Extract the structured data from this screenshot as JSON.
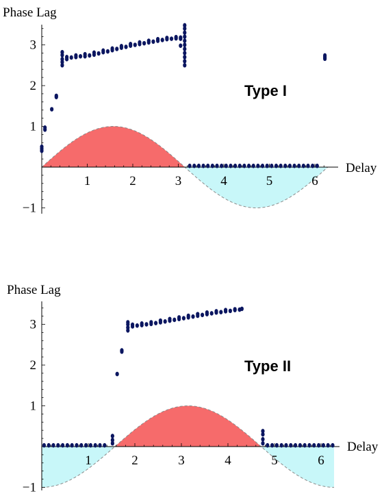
{
  "chart_data": [
    {
      "type": "scatter",
      "panel_label": "Type I",
      "ylabel": "Phase Lag",
      "xlabel": "Delay",
      "xlim": [
        0,
        6.28
      ],
      "ylim": [
        -1,
        3.5
      ],
      "xticks": [
        "1",
        "2",
        "3",
        "4",
        "5",
        "6"
      ],
      "xtick_values": [
        1,
        2,
        3,
        4,
        5,
        6
      ],
      "yticks": [
        "−1",
        "1",
        "2",
        "3"
      ],
      "ytick_values": [
        -1,
        1,
        2,
        3
      ],
      "background_curve": {
        "function": "sin(x)",
        "positive_color": "#f66b6b",
        "negative_color": "#c8f7f9"
      },
      "points": [
        {
          "x": 0.0,
          "y": 0.4
        },
        {
          "x": 0.0,
          "y": 0.45
        },
        {
          "x": 0.0,
          "y": 0.5
        },
        {
          "x": 0.07,
          "y": 0.92
        },
        {
          "x": 0.07,
          "y": 0.97
        },
        {
          "x": 0.22,
          "y": 1.42
        },
        {
          "x": 0.32,
          "y": 1.75
        },
        {
          "x": 0.32,
          "y": 1.72
        },
        {
          "x": 0.45,
          "y": 2.5
        },
        {
          "x": 0.45,
          "y": 2.58
        },
        {
          "x": 0.45,
          "y": 2.65
        },
        {
          "x": 0.45,
          "y": 2.75
        },
        {
          "x": 0.45,
          "y": 2.82
        },
        {
          "x": 0.55,
          "y": 2.65
        },
        {
          "x": 0.55,
          "y": 2.7
        },
        {
          "x": 0.65,
          "y": 2.69
        },
        {
          "x": 0.75,
          "y": 2.7
        },
        {
          "x": 0.75,
          "y": 2.74
        },
        {
          "x": 0.85,
          "y": 2.72
        },
        {
          "x": 0.95,
          "y": 2.72
        },
        {
          "x": 0.95,
          "y": 2.77
        },
        {
          "x": 1.05,
          "y": 2.74
        },
        {
          "x": 1.15,
          "y": 2.76
        },
        {
          "x": 1.15,
          "y": 2.81
        },
        {
          "x": 1.25,
          "y": 2.79
        },
        {
          "x": 1.35,
          "y": 2.82
        },
        {
          "x": 1.35,
          "y": 2.86
        },
        {
          "x": 1.45,
          "y": 2.84
        },
        {
          "x": 1.55,
          "y": 2.87
        },
        {
          "x": 1.55,
          "y": 2.91
        },
        {
          "x": 1.65,
          "y": 2.9
        },
        {
          "x": 1.75,
          "y": 2.93
        },
        {
          "x": 1.75,
          "y": 2.97
        },
        {
          "x": 1.85,
          "y": 2.95
        },
        {
          "x": 1.95,
          "y": 2.98
        },
        {
          "x": 1.95,
          "y": 3.02
        },
        {
          "x": 2.05,
          "y": 3.0
        },
        {
          "x": 2.15,
          "y": 3.02
        },
        {
          "x": 2.15,
          "y": 3.06
        },
        {
          "x": 2.25,
          "y": 3.04
        },
        {
          "x": 2.35,
          "y": 3.06
        },
        {
          "x": 2.35,
          "y": 3.1
        },
        {
          "x": 2.45,
          "y": 3.08
        },
        {
          "x": 2.55,
          "y": 3.1
        },
        {
          "x": 2.55,
          "y": 3.14
        },
        {
          "x": 2.65,
          "y": 3.12
        },
        {
          "x": 2.75,
          "y": 3.14
        },
        {
          "x": 2.75,
          "y": 3.17
        },
        {
          "x": 2.85,
          "y": 3.15
        },
        {
          "x": 2.95,
          "y": 3.16
        },
        {
          "x": 2.95,
          "y": 3.19
        },
        {
          "x": 3.05,
          "y": 3.18
        },
        {
          "x": 3.05,
          "y": 3.15
        },
        {
          "x": 3.05,
          "y": 2.98
        },
        {
          "x": 3.14,
          "y": 2.5
        },
        {
          "x": 3.14,
          "y": 2.6
        },
        {
          "x": 3.14,
          "y": 2.7
        },
        {
          "x": 3.14,
          "y": 2.8
        },
        {
          "x": 3.14,
          "y": 2.9
        },
        {
          "x": 3.14,
          "y": 3.0
        },
        {
          "x": 3.14,
          "y": 3.1
        },
        {
          "x": 3.14,
          "y": 3.2
        },
        {
          "x": 3.14,
          "y": 3.3
        },
        {
          "x": 3.14,
          "y": 3.4
        },
        {
          "x": 3.14,
          "y": 3.48
        },
        {
          "x": 3.25,
          "y": 0.03
        },
        {
          "x": 3.35,
          "y": 0.03
        },
        {
          "x": 3.45,
          "y": 0.03
        },
        {
          "x": 3.55,
          "y": 0.03
        },
        {
          "x": 3.65,
          "y": 0.03
        },
        {
          "x": 3.75,
          "y": 0.03
        },
        {
          "x": 3.85,
          "y": 0.03
        },
        {
          "x": 3.95,
          "y": 0.03
        },
        {
          "x": 4.05,
          "y": 0.03
        },
        {
          "x": 4.15,
          "y": 0.03
        },
        {
          "x": 4.25,
          "y": 0.03
        },
        {
          "x": 4.35,
          "y": 0.03
        },
        {
          "x": 4.45,
          "y": 0.03
        },
        {
          "x": 4.55,
          "y": 0.03
        },
        {
          "x": 4.65,
          "y": 0.03
        },
        {
          "x": 4.75,
          "y": 0.03
        },
        {
          "x": 4.85,
          "y": 0.03
        },
        {
          "x": 4.95,
          "y": 0.03
        },
        {
          "x": 5.05,
          "y": 0.03
        },
        {
          "x": 5.15,
          "y": 0.03
        },
        {
          "x": 5.25,
          "y": 0.03
        },
        {
          "x": 5.35,
          "y": 0.03
        },
        {
          "x": 5.45,
          "y": 0.03
        },
        {
          "x": 5.55,
          "y": 0.03
        },
        {
          "x": 5.65,
          "y": 0.03
        },
        {
          "x": 5.75,
          "y": 0.03
        },
        {
          "x": 5.85,
          "y": 0.03
        },
        {
          "x": 5.95,
          "y": 0.03
        },
        {
          "x": 6.05,
          "y": 0.03
        },
        {
          "x": 6.22,
          "y": 2.66
        },
        {
          "x": 6.22,
          "y": 2.7
        },
        {
          "x": 6.22,
          "y": 2.74
        }
      ]
    },
    {
      "type": "scatter",
      "panel_label": "Type II",
      "ylabel": "Phase Lag",
      "xlabel": "Delay",
      "xlim": [
        0,
        6.28
      ],
      "ylim": [
        -1,
        3.5
      ],
      "xticks": [
        "1",
        "2",
        "3",
        "4",
        "5",
        "6"
      ],
      "xtick_values": [
        1,
        2,
        3,
        4,
        5,
        6
      ],
      "yticks": [
        "−1",
        "1",
        "2",
        "3"
      ],
      "ytick_values": [
        -1,
        1,
        2,
        3
      ],
      "background_curve": {
        "function": "-cos(x)",
        "positive_color": "#f66b6b",
        "negative_color": "#c8f7f9"
      },
      "points": [
        {
          "x": 0.05,
          "y": 0.03
        },
        {
          "x": 0.15,
          "y": 0.03
        },
        {
          "x": 0.25,
          "y": 0.03
        },
        {
          "x": 0.35,
          "y": 0.03
        },
        {
          "x": 0.45,
          "y": 0.03
        },
        {
          "x": 0.55,
          "y": 0.03
        },
        {
          "x": 0.65,
          "y": 0.03
        },
        {
          "x": 0.75,
          "y": 0.03
        },
        {
          "x": 0.85,
          "y": 0.03
        },
        {
          "x": 0.95,
          "y": 0.03
        },
        {
          "x": 1.05,
          "y": 0.03
        },
        {
          "x": 1.15,
          "y": 0.03
        },
        {
          "x": 1.25,
          "y": 0.03
        },
        {
          "x": 1.35,
          "y": 0.03
        },
        {
          "x": 1.52,
          "y": 0.08
        },
        {
          "x": 1.52,
          "y": 0.16
        },
        {
          "x": 1.52,
          "y": 0.26
        },
        {
          "x": 1.62,
          "y": 1.78
        },
        {
          "x": 1.72,
          "y": 2.33
        },
        {
          "x": 1.72,
          "y": 2.36
        },
        {
          "x": 1.85,
          "y": 2.85
        },
        {
          "x": 1.85,
          "y": 2.92
        },
        {
          "x": 1.85,
          "y": 3.0
        },
        {
          "x": 1.85,
          "y": 3.05
        },
        {
          "x": 1.95,
          "y": 2.95
        },
        {
          "x": 1.95,
          "y": 2.99
        },
        {
          "x": 2.05,
          "y": 2.97
        },
        {
          "x": 2.15,
          "y": 2.98
        },
        {
          "x": 2.15,
          "y": 3.02
        },
        {
          "x": 2.25,
          "y": 3.0
        },
        {
          "x": 2.35,
          "y": 3.01
        },
        {
          "x": 2.35,
          "y": 3.05
        },
        {
          "x": 2.45,
          "y": 3.03
        },
        {
          "x": 2.55,
          "y": 3.05
        },
        {
          "x": 2.55,
          "y": 3.09
        },
        {
          "x": 2.65,
          "y": 3.07
        },
        {
          "x": 2.75,
          "y": 3.09
        },
        {
          "x": 2.75,
          "y": 3.13
        },
        {
          "x": 2.85,
          "y": 3.11
        },
        {
          "x": 2.95,
          "y": 3.13
        },
        {
          "x": 2.95,
          "y": 3.17
        },
        {
          "x": 3.05,
          "y": 3.15
        },
        {
          "x": 3.15,
          "y": 3.17
        },
        {
          "x": 3.15,
          "y": 3.21
        },
        {
          "x": 3.25,
          "y": 3.19
        },
        {
          "x": 3.35,
          "y": 3.21
        },
        {
          "x": 3.35,
          "y": 3.25
        },
        {
          "x": 3.45,
          "y": 3.23
        },
        {
          "x": 3.55,
          "y": 3.25
        },
        {
          "x": 3.55,
          "y": 3.29
        },
        {
          "x": 3.65,
          "y": 3.27
        },
        {
          "x": 3.75,
          "y": 3.29
        },
        {
          "x": 3.75,
          "y": 3.32
        },
        {
          "x": 3.85,
          "y": 3.3
        },
        {
          "x": 3.95,
          "y": 3.32
        },
        {
          "x": 3.95,
          "y": 3.35
        },
        {
          "x": 4.05,
          "y": 3.33
        },
        {
          "x": 4.15,
          "y": 3.35
        },
        {
          "x": 4.15,
          "y": 3.37
        },
        {
          "x": 4.25,
          "y": 3.36
        },
        {
          "x": 4.3,
          "y": 3.38
        },
        {
          "x": 4.75,
          "y": 0.08
        },
        {
          "x": 4.75,
          "y": 0.18
        },
        {
          "x": 4.75,
          "y": 0.3
        },
        {
          "x": 4.75,
          "y": 0.38
        },
        {
          "x": 4.85,
          "y": 0.03
        },
        {
          "x": 4.95,
          "y": 0.03
        },
        {
          "x": 5.05,
          "y": 0.03
        },
        {
          "x": 5.15,
          "y": 0.03
        },
        {
          "x": 5.25,
          "y": 0.03
        },
        {
          "x": 5.35,
          "y": 0.03
        },
        {
          "x": 5.45,
          "y": 0.03
        },
        {
          "x": 5.55,
          "y": 0.03
        },
        {
          "x": 5.65,
          "y": 0.03
        },
        {
          "x": 5.75,
          "y": 0.03
        },
        {
          "x": 5.85,
          "y": 0.03
        },
        {
          "x": 5.95,
          "y": 0.03
        },
        {
          "x": 6.05,
          "y": 0.03
        },
        {
          "x": 6.15,
          "y": 0.03
        },
        {
          "x": 6.25,
          "y": 0.03
        }
      ]
    }
  ],
  "colors": {
    "point": "#0b1660",
    "positive_fill": "#f66b6b",
    "negative_fill": "#c8f7f9",
    "curve_stroke": "#8a8a8a",
    "axis": "#000000"
  }
}
